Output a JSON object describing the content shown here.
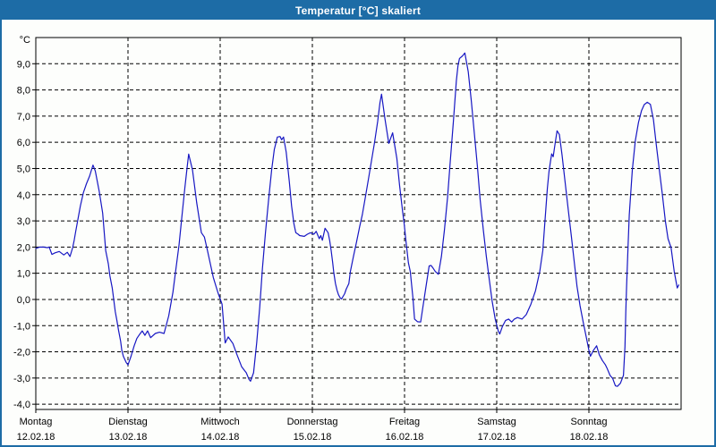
{
  "window": {
    "title": "Temperatur [°C] skaliert"
  },
  "colors": {
    "titlebar_bg": "#1d6ca6",
    "titlebar_text": "#ffffff",
    "plot_bg": "#fdfefc",
    "grid": "#000000",
    "line": "#1717c3"
  },
  "chart_data": {
    "type": "line",
    "title": "Temperatur [°C] skaliert",
    "y_unit": "°C",
    "y_ticks": [
      9,
      8,
      7,
      6,
      5,
      4,
      3,
      2,
      1,
      0,
      -1,
      -2,
      -3,
      -4
    ],
    "ylim": [
      -4.2,
      10
    ],
    "decimal": "comma",
    "grid": "dashed",
    "x_hours_total": 168,
    "x_categories": [
      {
        "day": "Montag",
        "date": "12.02.18"
      },
      {
        "day": "Dienstag",
        "date": "13.02.18"
      },
      {
        "day": "Mittwoch",
        "date": "14.02.18"
      },
      {
        "day": "Donnerstag",
        "date": "15.02.18"
      },
      {
        "day": "Freitag",
        "date": "16.02.18"
      },
      {
        "day": "Samstag",
        "date": "17.02.18"
      },
      {
        "day": "Sonntag",
        "date": "18.02.18"
      }
    ],
    "series": [
      {
        "name": "Temperatur",
        "color": "#1717c3",
        "points": [
          [
            0,
            1.95
          ],
          [
            1,
            2.0
          ],
          [
            2,
            2.0
          ],
          [
            3,
            1.98
          ],
          [
            3.5,
            2.0
          ],
          [
            4.2,
            1.72
          ],
          [
            5,
            1.78
          ],
          [
            6.1,
            1.83
          ],
          [
            7.3,
            1.7
          ],
          [
            8.2,
            1.8
          ],
          [
            8.9,
            1.64
          ],
          [
            9.6,
            1.98
          ],
          [
            10,
            2.26
          ],
          [
            10.4,
            2.6
          ],
          [
            11.6,
            3.57
          ],
          [
            12.4,
            4.08
          ],
          [
            13.2,
            4.42
          ],
          [
            14,
            4.71
          ],
          [
            14.6,
            5.0
          ],
          [
            14.9,
            5.13
          ],
          [
            15.5,
            4.9
          ],
          [
            16.5,
            4.14
          ],
          [
            17.4,
            3.3
          ],
          [
            18.2,
            1.87
          ],
          [
            18.9,
            1.35
          ],
          [
            19.3,
            0.9
          ],
          [
            19.9,
            0.44
          ],
          [
            20.3,
            -0.01
          ],
          [
            20.7,
            -0.47
          ],
          [
            21.1,
            -0.8
          ],
          [
            21.5,
            -1.15
          ],
          [
            22.1,
            -1.6
          ],
          [
            22.4,
            -1.94
          ],
          [
            22.8,
            -2.17
          ],
          [
            23.5,
            -2.4
          ],
          [
            24,
            -2.5
          ],
          [
            24.8,
            -2.17
          ],
          [
            25.6,
            -1.77
          ],
          [
            26.3,
            -1.49
          ],
          [
            27.1,
            -1.32
          ],
          [
            27.7,
            -1.2
          ],
          [
            28.4,
            -1.37
          ],
          [
            29.1,
            -1.2
          ],
          [
            29.9,
            -1.46
          ],
          [
            31.1,
            -1.3
          ],
          [
            32.2,
            -1.25
          ],
          [
            33.4,
            -1.3
          ],
          [
            34.6,
            -0.63
          ],
          [
            35.7,
            0.27
          ],
          [
            36.5,
            1.18
          ],
          [
            37.3,
            2.1
          ],
          [
            38,
            3.12
          ],
          [
            38.8,
            4.25
          ],
          [
            39.4,
            5.05
          ],
          [
            39.8,
            5.55
          ],
          [
            40.8,
            4.94
          ],
          [
            41.9,
            3.69
          ],
          [
            43.1,
            2.55
          ],
          [
            43.9,
            2.38
          ],
          [
            44.7,
            1.87
          ],
          [
            46.2,
            0.84
          ],
          [
            47.4,
            0.27
          ],
          [
            48.5,
            -0.18
          ],
          [
            49.3,
            -1.66
          ],
          [
            50.1,
            -1.43
          ],
          [
            51.3,
            -1.68
          ],
          [
            52.4,
            -2.12
          ],
          [
            53.6,
            -2.57
          ],
          [
            54.8,
            -2.8
          ],
          [
            55.5,
            -3.05
          ],
          [
            55.9,
            -3.12
          ],
          [
            56.7,
            -2.8
          ],
          [
            57.5,
            -1.66
          ],
          [
            58.3,
            -0.3
          ],
          [
            59,
            1.18
          ],
          [
            59.8,
            2.55
          ],
          [
            60.6,
            3.8
          ],
          [
            61.4,
            4.94
          ],
          [
            62.1,
            5.73
          ],
          [
            62.9,
            6.2
          ],
          [
            63.6,
            6.22
          ],
          [
            64,
            6.1
          ],
          [
            64.5,
            6.2
          ],
          [
            65.2,
            5.62
          ],
          [
            66,
            4.48
          ],
          [
            66.6,
            3.57
          ],
          [
            67.2,
            2.89
          ],
          [
            67.7,
            2.55
          ],
          [
            68.3,
            2.49
          ],
          [
            68.7,
            2.44
          ],
          [
            69.9,
            2.41
          ],
          [
            70.7,
            2.49
          ],
          [
            71.5,
            2.55
          ],
          [
            72.4,
            2.49
          ],
          [
            73,
            2.6
          ],
          [
            73.8,
            2.32
          ],
          [
            74.2,
            2.44
          ],
          [
            74.6,
            2.26
          ],
          [
            75.3,
            2.72
          ],
          [
            76.1,
            2.55
          ],
          [
            76.5,
            2.26
          ],
          [
            76.9,
            1.87
          ],
          [
            77.3,
            1.41
          ],
          [
            77.6,
            1.01
          ],
          [
            78,
            0.61
          ],
          [
            78.4,
            0.36
          ],
          [
            78.8,
            0.18
          ],
          [
            79.2,
            0.07
          ],
          [
            79.6,
            0.02
          ],
          [
            80.4,
            0.22
          ],
          [
            80.8,
            0.39
          ],
          [
            81.5,
            0.61
          ],
          [
            81.9,
            1.07
          ],
          [
            82.7,
            1.64
          ],
          [
            83.5,
            2.2
          ],
          [
            84.3,
            2.77
          ],
          [
            85,
            3.23
          ],
          [
            85.8,
            3.9
          ],
          [
            86.6,
            4.6
          ],
          [
            87.4,
            5.3
          ],
          [
            88.2,
            6.0
          ],
          [
            89,
            6.8
          ],
          [
            89.6,
            7.5
          ],
          [
            90,
            7.84
          ],
          [
            90.9,
            6.9
          ],
          [
            91.9,
            5.96
          ],
          [
            92.9,
            6.36
          ],
          [
            94,
            5.39
          ],
          [
            94.7,
            4.37
          ],
          [
            95.5,
            3.34
          ],
          [
            95.9,
            2.89
          ],
          [
            96.3,
            2.32
          ],
          [
            97,
            1.4
          ],
          [
            97.5,
            1.07
          ],
          [
            98.2,
            0.05
          ],
          [
            98.6,
            -0.75
          ],
          [
            99.4,
            -0.85
          ],
          [
            100.2,
            -0.86
          ],
          [
            100.9,
            -0.18
          ],
          [
            101.7,
            0.61
          ],
          [
            102.4,
            1.28
          ],
          [
            102.9,
            1.3
          ],
          [
            103.4,
            1.2
          ],
          [
            104,
            1.07
          ],
          [
            104.8,
            0.96
          ],
          [
            105.6,
            1.64
          ],
          [
            106.4,
            2.66
          ],
          [
            107.2,
            3.91
          ],
          [
            107.9,
            5.28
          ],
          [
            108.7,
            6.76
          ],
          [
            109.5,
            8.35
          ],
          [
            109.9,
            8.92
          ],
          [
            110.3,
            9.2
          ],
          [
            111.1,
            9.3
          ],
          [
            111.7,
            9.41
          ],
          [
            112.6,
            8.69
          ],
          [
            113.4,
            7.55
          ],
          [
            114.2,
            6.3
          ],
          [
            115,
            5.05
          ],
          [
            115.7,
            3.8
          ],
          [
            116.5,
            2.66
          ],
          [
            117.3,
            1.64
          ],
          [
            118.1,
            0.73
          ],
          [
            118.8,
            -0.07
          ],
          [
            119.6,
            -0.75
          ],
          [
            120.4,
            -1.2
          ],
          [
            120.8,
            -1.32
          ],
          [
            121.5,
            -1.03
          ],
          [
            122.3,
            -0.8
          ],
          [
            123.1,
            -0.75
          ],
          [
            123.9,
            -0.86
          ],
          [
            124.6,
            -0.75
          ],
          [
            125.4,
            -0.69
          ],
          [
            126.6,
            -0.75
          ],
          [
            127.7,
            -0.58
          ],
          [
            128.9,
            -0.18
          ],
          [
            130.1,
            0.33
          ],
          [
            131.2,
            1.07
          ],
          [
            132,
            1.87
          ],
          [
            132.4,
            2.66
          ],
          [
            132.8,
            3.46
          ],
          [
            133.2,
            4.25
          ],
          [
            133.6,
            4.88
          ],
          [
            134,
            5.28
          ],
          [
            134.3,
            5.56
          ],
          [
            134.7,
            5.45
          ],
          [
            135.1,
            5.85
          ],
          [
            135.7,
            6.44
          ],
          [
            136.3,
            6.3
          ],
          [
            137,
            5.51
          ],
          [
            137.8,
            4.48
          ],
          [
            138.6,
            3.46
          ],
          [
            139.4,
            2.44
          ],
          [
            140.2,
            1.41
          ],
          [
            140.9,
            0.5
          ],
          [
            141.7,
            -0.24
          ],
          [
            142.5,
            -0.86
          ],
          [
            143.3,
            -1.43
          ],
          [
            144,
            -1.94
          ],
          [
            144.4,
            -2.17
          ],
          [
            145.2,
            -1.94
          ],
          [
            146,
            -1.77
          ],
          [
            146.7,
            -2.11
          ],
          [
            147.5,
            -2.33
          ],
          [
            148.3,
            -2.5
          ],
          [
            148.7,
            -2.62
          ],
          [
            149.5,
            -2.9
          ],
          [
            150.2,
            -3.02
          ],
          [
            150.9,
            -3.3
          ],
          [
            151.4,
            -3.32
          ],
          [
            152.2,
            -3.2
          ],
          [
            153,
            -2.9
          ],
          [
            153.4,
            -1.8
          ],
          [
            153.6,
            -0.5
          ],
          [
            153.8,
            0.5
          ],
          [
            154.2,
            2.09
          ],
          [
            154.5,
            3.23
          ],
          [
            155.3,
            4.94
          ],
          [
            156.1,
            6.07
          ],
          [
            156.9,
            6.76
          ],
          [
            157.7,
            7.21
          ],
          [
            158.4,
            7.44
          ],
          [
            159.2,
            7.53
          ],
          [
            160,
            7.45
          ],
          [
            160.8,
            6.87
          ],
          [
            161.5,
            5.96
          ],
          [
            162.3,
            5.0
          ],
          [
            163.1,
            4.03
          ],
          [
            163.9,
            3.0
          ],
          [
            164.6,
            2.32
          ],
          [
            165.4,
            1.98
          ],
          [
            166.2,
            1.07
          ],
          [
            167,
            0.44
          ],
          [
            167.4,
            0.55
          ]
        ]
      }
    ]
  }
}
